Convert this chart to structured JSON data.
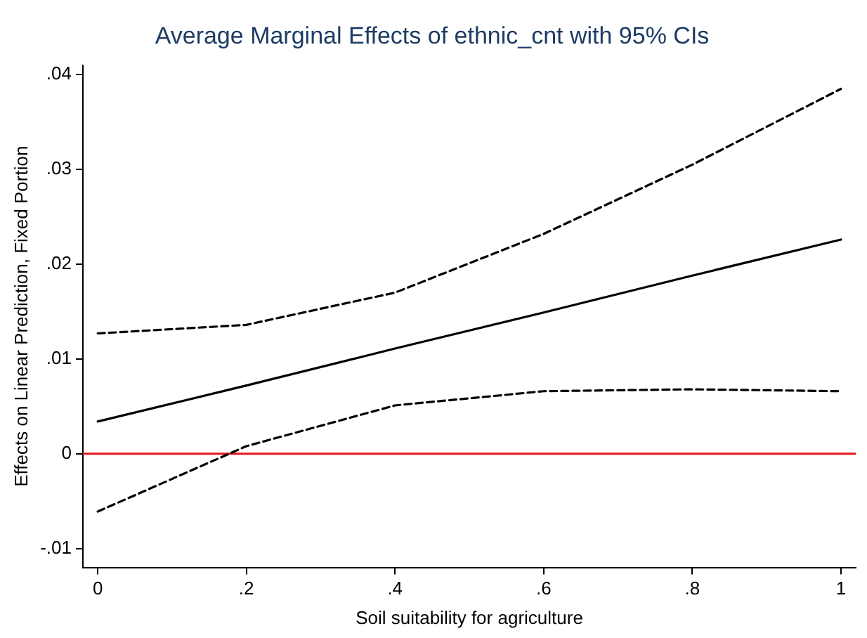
{
  "chart_data": {
    "type": "line",
    "title": "Average Marginal Effects of ethnic_cnt with 95% CIs",
    "xlabel": "Soil suitability for agriculture",
    "ylabel": "Effects on Linear Prediction, Fixed Portion",
    "x": [
      0,
      0.2,
      0.4,
      0.6,
      0.8,
      1
    ],
    "series": [
      {
        "color": "#000000",
        "line_style": "solid",
        "values": [
          0.0034,
          0.0072,
          0.0111,
          0.0149,
          0.0188,
          0.0226
        ]
      },
      {
        "color": "#000000",
        "line_style": "dashed",
        "values": [
          0.0127,
          0.0136,
          0.017,
          0.0232,
          0.0305,
          0.0385
        ]
      },
      {
        "color": "#000000",
        "line_style": "dashed",
        "values": [
          -0.0061,
          0.0008,
          0.0051,
          0.0066,
          0.0068,
          0.0066
        ]
      }
    ],
    "xlim": [
      -0.02,
      1.02
    ],
    "xticks": [
      0,
      {
        "value": 0.2,
        "label": ".2"
      },
      {
        "value": 0.4,
        "label": ".4"
      },
      {
        "value": 0.6,
        "label": ".6"
      },
      {
        "value": 0.8,
        "label": ".8"
      },
      1
    ],
    "ylim": [
      -0.012,
      0.041
    ],
    "yticks": [
      {
        "value": -0.01,
        "label": "-.01"
      },
      0,
      {
        "value": 0.01,
        "label": ".01"
      },
      {
        "value": 0.02,
        "label": ".02"
      },
      {
        "value": 0.03,
        "label": ".03"
      },
      {
        "value": 0.04,
        "label": ".04"
      }
    ],
    "ref_lines": [
      {
        "axis": "y",
        "value": 0,
        "color": "#e8141c"
      }
    ],
    "grid": false,
    "legend": false,
    "marker": "none"
  }
}
